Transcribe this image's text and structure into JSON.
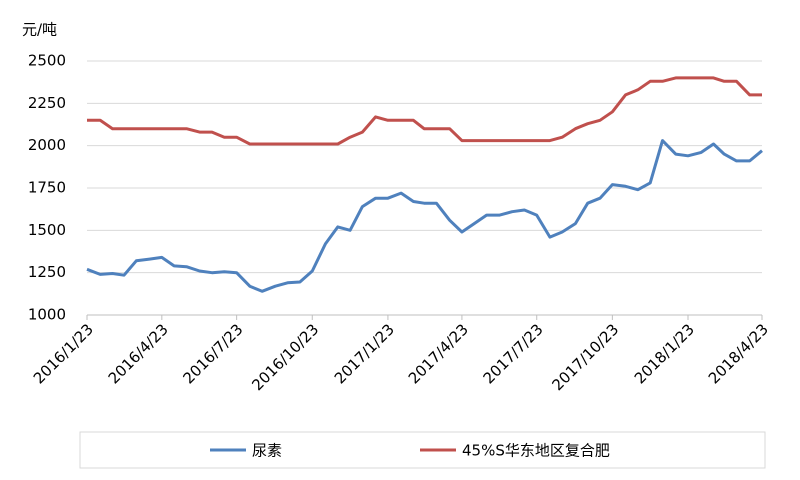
{
  "chart_data": {
    "type": "line",
    "y_axis_label": "元/吨",
    "x": [
      "2016/1/23",
      "2016/2/8",
      "2016/2/23",
      "2016/3/8",
      "2016/3/23",
      "2016/4/8",
      "2016/4/23",
      "2016/5/8",
      "2016/5/23",
      "2016/6/8",
      "2016/6/23",
      "2016/7/8",
      "2016/7/23",
      "2016/8/8",
      "2016/8/23",
      "2016/9/8",
      "2016/9/23",
      "2016/10/8",
      "2016/10/23",
      "2016/11/8",
      "2016/11/23",
      "2016/12/8",
      "2016/12/23",
      "2017/1/8",
      "2017/1/23",
      "2017/2/8",
      "2017/2/23",
      "2017/3/8",
      "2017/3/23",
      "2017/4/8",
      "2017/4/23",
      "2017/5/8",
      "2017/5/23",
      "2017/6/8",
      "2017/6/23",
      "2017/7/8",
      "2017/7/23",
      "2017/8/8",
      "2017/8/23",
      "2017/9/8",
      "2017/9/23",
      "2017/10/8",
      "2017/10/23",
      "2017/11/8",
      "2017/11/23",
      "2017/12/8",
      "2017/12/23",
      "2018/1/8",
      "2018/1/23",
      "2018/2/8",
      "2018/2/23",
      "2018/3/8",
      "2018/3/23",
      "2018/4/8",
      "2018/4/23"
    ],
    "series": [
      {
        "name": "尿素",
        "color": "#4f81bd",
        "values": [
          1270,
          1240,
          1245,
          1235,
          1320,
          1330,
          1340,
          1290,
          1285,
          1260,
          1250,
          1255,
          1250,
          1170,
          1140,
          1170,
          1190,
          1195,
          1260,
          1420,
          1520,
          1500,
          1640,
          1690,
          1690,
          1720,
          1670,
          1660,
          1660,
          1560,
          1490,
          1540,
          1590,
          1590,
          1610,
          1620,
          1590,
          1460,
          1490,
          1540,
          1660,
          1690,
          1770,
          1760,
          1740,
          1780,
          2030,
          1950,
          1940,
          1960,
          2010,
          1950,
          1910,
          1910,
          1970
        ]
      },
      {
        "name": "45%S华东地区复合肥",
        "color": "#c0504d",
        "values": [
          2150,
          2150,
          2100,
          2100,
          2100,
          2100,
          2100,
          2100,
          2100,
          2080,
          2080,
          2050,
          2050,
          2010,
          2010,
          2010,
          2010,
          2010,
          2010,
          2010,
          2010,
          2050,
          2080,
          2170,
          2150,
          2150,
          2150,
          2100,
          2100,
          2100,
          2030,
          2030,
          2030,
          2030,
          2030,
          2030,
          2030,
          2030,
          2050,
          2100,
          2130,
          2150,
          2200,
          2300,
          2330,
          2380,
          2380,
          2400,
          2400,
          2400,
          2400,
          2380,
          2380,
          2300,
          2300
        ]
      }
    ],
    "xlim": [
      "2016/1/23",
      "2018/4/23"
    ],
    "xticks": [
      "2016/1/23",
      "2016/4/23",
      "2016/7/23",
      "2016/10/23",
      "2017/1/23",
      "2017/4/23",
      "2017/7/23",
      "2017/10/23",
      "2018/1/23",
      "2018/4/23"
    ],
    "ylim": [
      1000,
      2500
    ],
    "yticks": [
      1000,
      1250,
      1500,
      1750,
      2000,
      2250,
      2500
    ],
    "grid": true,
    "legend": "bottom"
  }
}
